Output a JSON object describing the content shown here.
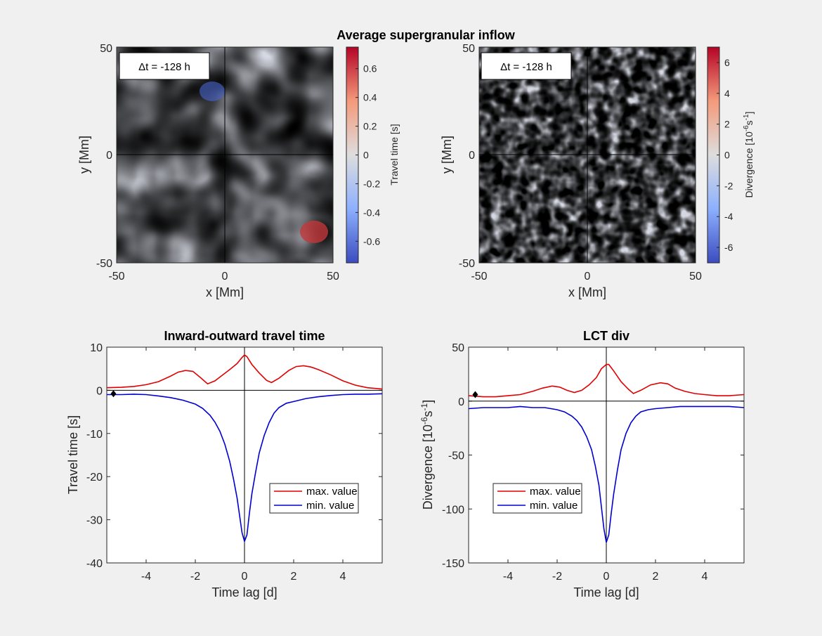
{
  "chart_data": [
    {
      "type": "heatmap",
      "id": "tt_map",
      "suptitle": "Average supergranular inflow",
      "annotation": "Δt = -128 h",
      "xlabel": "x [Mm]",
      "ylabel": "y [Mm]",
      "xlim": [
        -50,
        50
      ],
      "ylim": [
        -50,
        50
      ],
      "xticks": [
        "-50",
        "0",
        "50"
      ],
      "yticks": [
        "50",
        "0",
        "-50"
      ],
      "colorbar": {
        "label": "Travel time [s]",
        "range": [
          -0.75,
          0.75
        ],
        "ticks": [
          "0.6",
          "0.4",
          "0.2",
          "0",
          "-0.2",
          "-0.4",
          "-0.6"
        ],
        "tick_values": [
          0.6,
          0.4,
          0.2,
          0,
          -0.2,
          -0.4,
          -0.6
        ],
        "colormap": [
          "#3b4cc0",
          "#8db0fe",
          "#dddddd",
          "#f49a7b",
          "#b40426"
        ]
      },
      "crosshair": [
        0,
        0
      ]
    },
    {
      "type": "heatmap",
      "id": "div_map",
      "annotation": "Δt = -128 h",
      "xlabel": "x [Mm]",
      "ylabel": "y [Mm]",
      "xlim": [
        -50,
        50
      ],
      "ylim": [
        -50,
        50
      ],
      "xticks": [
        "-50",
        "0",
        "50"
      ],
      "yticks": [
        "50",
        "0",
        "-50"
      ],
      "colorbar": {
        "label_main": "Divergence [10",
        "label_exp1": "-6",
        "label_mid": "s",
        "label_exp2": "-1",
        "label_end": "]",
        "range": [
          -7,
          7
        ],
        "ticks": [
          "6",
          "4",
          "2",
          "0",
          "-2",
          "-4",
          "-6"
        ],
        "tick_values": [
          6,
          4,
          2,
          0,
          -2,
          -4,
          -6
        ],
        "colormap": [
          "#3b4cc0",
          "#8db0fe",
          "#dddddd",
          "#f49a7b",
          "#b40426"
        ]
      },
      "crosshair": [
        0,
        0
      ]
    },
    {
      "type": "line",
      "id": "tt_line",
      "title": "Inward-outward travel time",
      "xlabel": "Time lag [d]",
      "ylabel": "Travel time [s]",
      "xlim": [
        -5.6,
        5.6
      ],
      "ylim": [
        -40,
        10
      ],
      "xticks": [
        "-4",
        "-2",
        "0",
        "2",
        "4"
      ],
      "xtick_values": [
        -4,
        -2,
        0,
        2,
        4
      ],
      "yticks": [
        "10",
        "0",
        "-10",
        "-20",
        "-30",
        "-40"
      ],
      "ytick_values": [
        10,
        0,
        -10,
        -20,
        -30,
        -40
      ],
      "marker": [
        -5.33,
        -0.8
      ],
      "legend": [
        "max. value",
        "min. value"
      ],
      "series": [
        {
          "name": "max. value",
          "color": "#e00000",
          "x": [
            -5.6,
            -5.0,
            -4.5,
            -4.0,
            -3.5,
            -3.0,
            -2.7,
            -2.4,
            -2.1,
            -1.8,
            -1.5,
            -1.2,
            -0.9,
            -0.6,
            -0.3,
            -0.1,
            0.0,
            0.1,
            0.3,
            0.6,
            0.9,
            1.1,
            1.4,
            1.8,
            2.1,
            2.4,
            2.7,
            3.0,
            3.5,
            4.0,
            4.5,
            5.0,
            5.6
          ],
          "y": [
            0.6,
            0.7,
            0.9,
            1.3,
            2.0,
            3.3,
            4.2,
            4.6,
            4.4,
            3.0,
            1.5,
            2.2,
            3.5,
            4.8,
            6.2,
            7.6,
            8.2,
            7.8,
            6.0,
            4.0,
            2.3,
            1.8,
            2.8,
            4.6,
            5.5,
            5.7,
            5.4,
            4.8,
            3.6,
            2.2,
            1.2,
            0.6,
            0.3
          ]
        },
        {
          "name": "min. value",
          "color": "#0000d0",
          "x": [
            -5.6,
            -5.0,
            -4.5,
            -4.0,
            -3.5,
            -3.0,
            -2.5,
            -2.0,
            -1.7,
            -1.4,
            -1.2,
            -1.0,
            -0.8,
            -0.6,
            -0.45,
            -0.3,
            -0.2,
            -0.1,
            0.0,
            0.1,
            0.2,
            0.3,
            0.45,
            0.6,
            0.8,
            1.0,
            1.2,
            1.4,
            1.7,
            2.0,
            2.5,
            3.0,
            3.5,
            4.0,
            4.5,
            5.0,
            5.6
          ],
          "y": [
            -1.0,
            -1.0,
            -0.9,
            -1.0,
            -1.3,
            -1.7,
            -2.3,
            -3.2,
            -4.2,
            -5.8,
            -7.4,
            -9.5,
            -12.5,
            -16.5,
            -20.5,
            -25.0,
            -29.0,
            -33.0,
            -35.0,
            -33.5,
            -28.5,
            -24.0,
            -19.0,
            -14.5,
            -10.5,
            -7.5,
            -5.3,
            -4.0,
            -3.0,
            -2.6,
            -1.9,
            -1.5,
            -1.2,
            -1.0,
            -0.9,
            -0.9,
            -0.8
          ]
        }
      ]
    },
    {
      "type": "line",
      "id": "div_line",
      "title": "LCT div",
      "xlabel": "Time lag [d]",
      "ylabel_main": "Divergence [10",
      "ylabel_exp1": "-6",
      "ylabel_mid": "s",
      "ylabel_exp2": "-1",
      "ylabel_end": "]",
      "xlim": [
        -5.6,
        5.6
      ],
      "ylim": [
        -150,
        50
      ],
      "xticks": [
        "-4",
        "-2",
        "0",
        "2",
        "4"
      ],
      "xtick_values": [
        -4,
        -2,
        0,
        2,
        4
      ],
      "yticks": [
        "50",
        "0",
        "-50",
        "-100",
        "-150"
      ],
      "ytick_values": [
        50,
        0,
        -50,
        -100,
        -150
      ],
      "marker": [
        -5.33,
        6
      ],
      "legend": [
        "max. value",
        "min. value"
      ],
      "series": [
        {
          "name": "max. value",
          "color": "#e00000",
          "x": [
            -5.6,
            -5.0,
            -4.5,
            -4.0,
            -3.5,
            -3.0,
            -2.6,
            -2.2,
            -1.9,
            -1.6,
            -1.3,
            -1.0,
            -0.7,
            -0.4,
            -0.2,
            0.0,
            0.1,
            0.3,
            0.6,
            0.9,
            1.1,
            1.4,
            1.8,
            2.2,
            2.5,
            2.8,
            3.2,
            3.6,
            4.0,
            4.5,
            5.0,
            5.6
          ],
          "y": [
            5,
            4,
            4,
            5,
            6,
            9,
            12,
            14,
            13,
            10,
            8,
            10,
            15,
            22,
            30,
            34,
            34,
            28,
            18,
            11,
            7,
            10,
            15,
            17,
            16,
            12,
            9,
            7,
            6,
            5,
            5,
            6
          ]
        },
        {
          "name": "min. value",
          "color": "#0000d0",
          "x": [
            -5.6,
            -5.0,
            -4.5,
            -4.0,
            -3.5,
            -3.0,
            -2.5,
            -2.0,
            -1.7,
            -1.4,
            -1.2,
            -1.0,
            -0.8,
            -0.6,
            -0.45,
            -0.3,
            -0.2,
            -0.1,
            0.0,
            0.1,
            0.2,
            0.3,
            0.45,
            0.6,
            0.8,
            1.0,
            1.2,
            1.4,
            1.7,
            2.0,
            2.5,
            3.0,
            3.5,
            4.0,
            4.5,
            5.0,
            5.6
          ],
          "y": [
            -7,
            -6,
            -6,
            -6,
            -5,
            -6,
            -6,
            -8,
            -10,
            -14,
            -18,
            -24,
            -33,
            -45,
            -60,
            -78,
            -98,
            -118,
            -131,
            -124,
            -104,
            -86,
            -64,
            -45,
            -30,
            -20,
            -14,
            -10,
            -8,
            -7,
            -6,
            -5,
            -5,
            -5,
            -5,
            -5,
            -6
          ]
        }
      ]
    }
  ]
}
